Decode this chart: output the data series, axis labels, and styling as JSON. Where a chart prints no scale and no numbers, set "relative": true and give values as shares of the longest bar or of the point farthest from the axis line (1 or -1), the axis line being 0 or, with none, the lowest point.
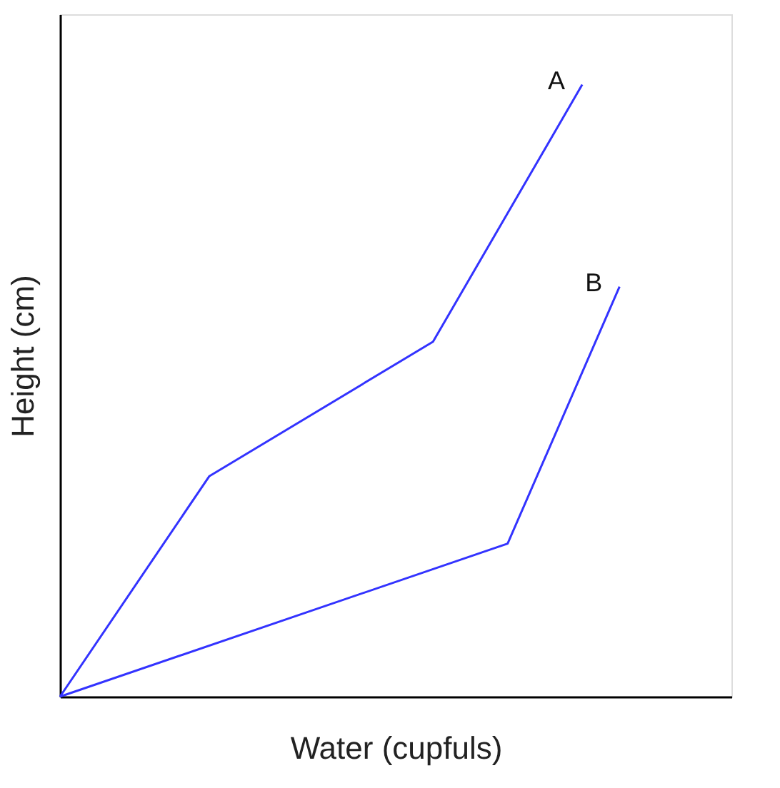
{
  "chart_data": {
    "type": "line",
    "relative": true,
    "xlabel": "Water (cupfuls)",
    "ylabel": "Height (cm)",
    "legend": false,
    "grid": false,
    "marker": "none",
    "line_style": "solid",
    "categories": [
      null,
      null,
      null,
      null,
      null,
      null,
      null,
      null,
      null,
      null,
      null,
      null,
      null,
      null,
      null,
      null,
      null,
      null,
      null
    ],
    "series": [
      {
        "name": "A",
        "color": "#3333ff",
        "values": [
          0,
          null,
          null,
          null,
          0.36,
          null,
          null,
          null,
          null,
          null,
          0.58,
          null,
          null,
          null,
          1.0,
          null,
          null,
          null,
          null
        ]
      },
      {
        "name": "B",
        "color": "#3333ff",
        "values": [
          0,
          null,
          null,
          null,
          null,
          null,
          null,
          null,
          null,
          null,
          null,
          null,
          0.25,
          null,
          null,
          0.67,
          null,
          null,
          null
        ]
      }
    ]
  }
}
